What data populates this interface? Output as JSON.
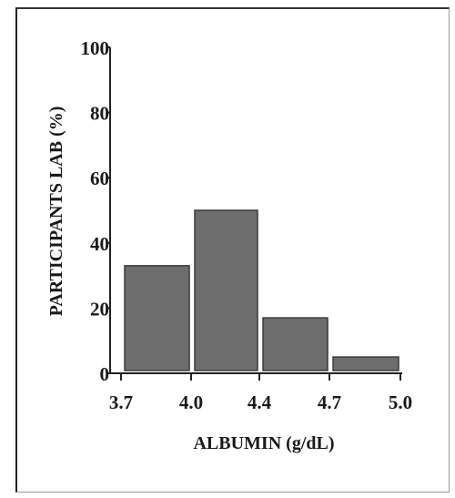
{
  "chart_data": {
    "type": "bar",
    "bins": [
      {
        "from": "3.7",
        "to": "4.0",
        "value": 33
      },
      {
        "from": "4.0",
        "to": "4.4",
        "value": 50
      },
      {
        "from": "4.4",
        "to": "4.7",
        "value": 17
      },
      {
        "from": "4.7",
        "to": "5.0",
        "value": 5
      }
    ],
    "x_ticks": [
      "3.7",
      "4.0",
      "4.4",
      "4.7",
      "5.0"
    ],
    "y_ticks": [
      "0",
      "20",
      "40",
      "60",
      "80",
      "100"
    ],
    "xlabel": "ALBUMIN (g/dL)",
    "ylabel": "PARTICIPANTS LAB (%)",
    "ylim": [
      0,
      100
    ],
    "grid": false,
    "bar_color": "#6e6e6e"
  }
}
